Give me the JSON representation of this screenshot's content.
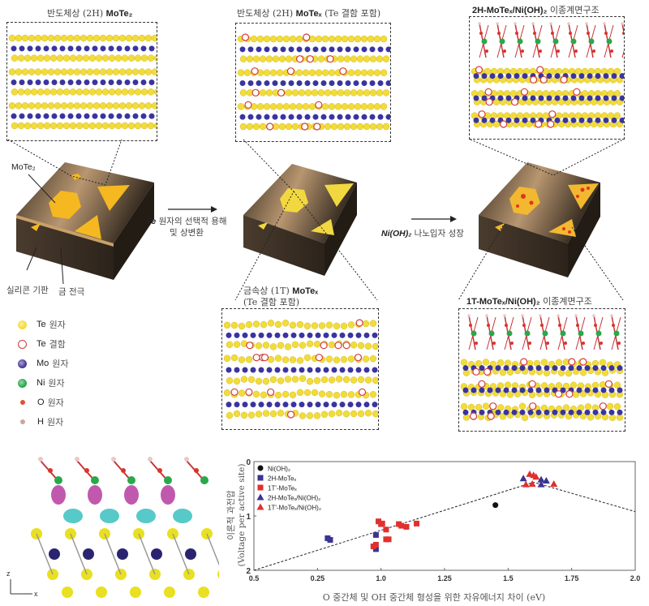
{
  "panels": {
    "top_left_title": {
      "pre": "반도체상 (2H) ",
      "bold": "MoTe₂"
    },
    "top_mid_title": {
      "pre": "반도체상 (2H) ",
      "bold": "MoTeₓ",
      "post": " (Te 결함 포함)"
    },
    "top_right_title": {
      "bold": "2H-MoTeₓ/Ni(OH)₂",
      "post": " 이종계면구조"
    },
    "bottom_mid_title": {
      "pre": "금속상 (1T) ",
      "bold": "MoTeₓ",
      "line2": "(Te 결함 포함)"
    },
    "bottom_right_title": {
      "bold": "1T-MoTeₓ/Ni(OH)₂",
      "post": " 이종계면구조"
    }
  },
  "substrate_labels": {
    "mote2": "MoTe₂",
    "silicon": "실리콘 기판",
    "gold": "금 전극"
  },
  "steps": {
    "step1_italic": "Te",
    "step1_line1": " 원자의 선택적 용해",
    "step1_line2": "및 상변환",
    "step2_italic": "Ni(OH)₂",
    "step2_text": " 나노입자 성장"
  },
  "legend": [
    {
      "element": "Te",
      "label": "원자",
      "color": "#f2dc3a",
      "style": "filled"
    },
    {
      "element": "Te",
      "label": "결함",
      "color": "#d33b3b",
      "style": "open"
    },
    {
      "element": "Mo",
      "label": "원자",
      "color": "#4a3a9a",
      "style": "filled"
    },
    {
      "element": "Ni",
      "label": "원자",
      "color": "#2aa84a",
      "style": "filled"
    },
    {
      "element": "O",
      "label": "원자",
      "color": "#e0503a",
      "style": "small"
    },
    {
      "element": "H",
      "label": "원자",
      "color": "#c8a89a",
      "style": "small"
    }
  ],
  "axes_indicator": {
    "z": "z",
    "x": "x"
  },
  "colors": {
    "te": "#f2dc3a",
    "mo": "#3a34a0",
    "defect": "#d33b3b",
    "ni": "#2aa84a",
    "o": "#d9342b",
    "h": "#e8c8c8",
    "substrate": "#5a4630",
    "flake": "#f5b820"
  },
  "chart_data": {
    "type": "scatter",
    "xlabel": "O 중간체 및 OH 중간체 형성을 위한 자유에너지 차이 (eV)",
    "ylabel_line1": "이론적 과전압",
    "ylabel_line2": "(Voltage per active site)",
    "xlim": [
      0.5,
      2.0
    ],
    "ylim": [
      2,
      0
    ],
    "y_reversed": true,
    "x_ticks": [
      "0.5",
      "0.25",
      "1.0",
      "1.25",
      "1.5",
      "1.75",
      "2.0"
    ],
    "y_ticks": [
      "0",
      "1",
      "2"
    ],
    "legend_position": "top-left",
    "grid": false,
    "series": [
      {
        "name": "Ni(OH)₂",
        "marker": "circle",
        "color": "#111111",
        "points": [
          [
            1.45,
            0.8
          ]
        ]
      },
      {
        "name": "2H-MoTeₓ",
        "marker": "square",
        "color": "#3a3592",
        "points": [
          [
            0.79,
            1.41
          ],
          [
            0.8,
            1.44
          ],
          [
            0.98,
            1.35
          ],
          [
            0.98,
            1.61
          ]
        ]
      },
      {
        "name": "1T'-MoTeₓ",
        "marker": "square",
        "color": "#e03030",
        "points": [
          [
            0.99,
            1.1
          ],
          [
            1.0,
            1.15
          ],
          [
            1.005,
            1.14
          ],
          [
            1.02,
            1.25
          ],
          [
            1.02,
            1.43
          ],
          [
            1.03,
            1.43
          ],
          [
            0.97,
            1.56
          ],
          [
            0.98,
            1.53
          ],
          [
            1.07,
            1.15
          ],
          [
            1.08,
            1.18
          ],
          [
            1.1,
            1.2
          ],
          [
            1.14,
            1.14
          ]
        ]
      },
      {
        "name": "2H-MoTeₓ/Ni(OH)₂",
        "marker": "triangle",
        "color": "#3a3592",
        "points": [
          [
            1.56,
            0.31
          ],
          [
            1.63,
            0.33
          ],
          [
            1.65,
            0.35
          ],
          [
            1.63,
            0.42
          ]
        ]
      },
      {
        "name": "1T'-MoTeₓ/Ni(OH)₂",
        "marker": "triangle",
        "color": "#e03030",
        "points": [
          [
            1.585,
            0.23
          ],
          [
            1.6,
            0.25
          ],
          [
            1.61,
            0.28
          ],
          [
            1.57,
            0.42
          ],
          [
            1.595,
            0.41
          ],
          [
            1.68,
            0.41
          ]
        ]
      }
    ],
    "volcano_line": [
      [
        0.5,
        2.0
      ],
      [
        1.6,
        0.38
      ],
      [
        2.0,
        0.92
      ]
    ]
  }
}
